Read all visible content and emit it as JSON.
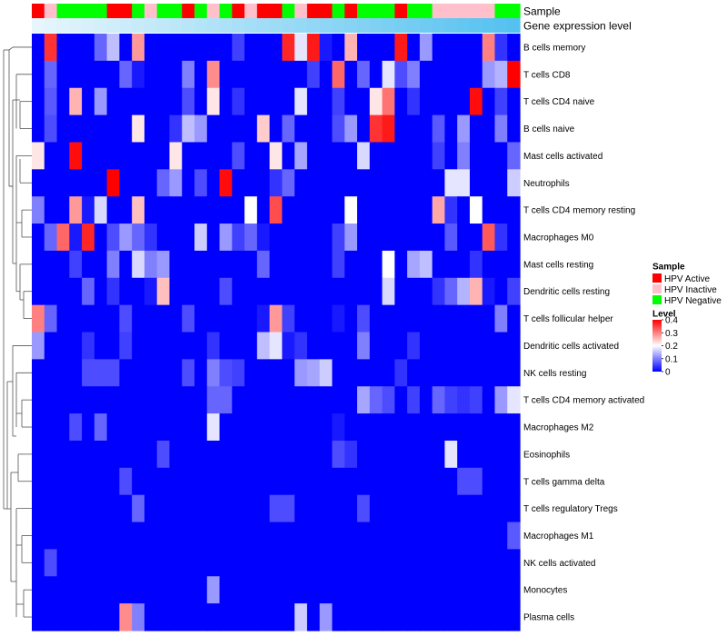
{
  "chart_data": {
    "type": "heatmap",
    "title": "",
    "annotation_rows": [
      {
        "name": "Sample"
      },
      {
        "name": "Gene expression level"
      }
    ],
    "legend_sample": {
      "title": "Sample",
      "entries": [
        {
          "label": "HPV Active",
          "color": "#ff0000"
        },
        {
          "label": "HPV Inactive",
          "color": "#ffc0cb"
        },
        {
          "label": "HPV Negative",
          "color": "#00ff00"
        }
      ]
    },
    "legend_level": {
      "title": "Level",
      "ticks": [
        "0.4",
        "0.3",
        "0.2",
        "0.1",
        "0"
      ],
      "scale": [
        {
          "value": 0.0,
          "color": "#0000ff"
        },
        {
          "value": 0.2,
          "color": "#ffffff"
        },
        {
          "value": 0.4,
          "color": "#ff0000"
        }
      ],
      "range": [
        0,
        0.4
      ]
    },
    "sample_groups": [
      "A",
      "I",
      "N",
      "N",
      "N",
      "N",
      "A",
      "A",
      "N",
      "I",
      "N",
      "N",
      "A",
      "N",
      "I",
      "N",
      "A",
      "I",
      "A",
      "A",
      "N",
      "I",
      "A",
      "A",
      "N",
      "A",
      "N",
      "N",
      "N",
      "A",
      "N",
      "N",
      "I",
      "I",
      "I",
      "I",
      "I",
      "N",
      "N"
    ],
    "expression_gradient": {
      "start": "#e6f6fc",
      "end": "#55c1f0"
    },
    "cell_types": [
      "B cells memory",
      "T cells CD8",
      "T cells CD4 naive",
      "B cells naive",
      "Mast cells activated",
      "Neutrophils",
      "T cells CD4 memory resting",
      "Macrophages M0",
      "Mast cells resting",
      "Dendritic cells resting",
      "T cells follicular helper",
      "Dendritic cells activated",
      "NK cells resting",
      "T cells CD4 memory activated",
      "Macrophages M2",
      "Eosinophils",
      "T cells gamma delta",
      "T cells regulatory  Tregs",
      "Macrophages M1",
      "NK cells activated",
      "Monocytes",
      "Plasma cells"
    ],
    "values": [
      [
        0.0,
        0.36,
        0.0,
        0.0,
        0.0,
        0.08,
        0.15,
        0.0,
        0.28,
        0.0,
        0.0,
        0.0,
        0.0,
        0.0,
        0.0,
        0.0,
        0.05,
        0.0,
        0.0,
        0.0,
        0.37,
        0.18,
        0.38,
        0.02,
        0.0,
        0.26,
        0.0,
        0.0,
        0.0,
        0.38,
        0.0,
        0.12,
        0.0,
        0.0,
        0.0,
        0.0,
        0.3,
        0.04,
        0.0
      ],
      [
        0.0,
        0.08,
        0.0,
        0.0,
        0.0,
        0.0,
        0.0,
        0.08,
        0.02,
        0.0,
        0.0,
        0.0,
        0.1,
        0.0,
        0.29,
        0.0,
        0.0,
        0.0,
        0.0,
        0.0,
        0.0,
        0.0,
        0.05,
        0.0,
        0.32,
        0.0,
        0.08,
        0.0,
        0.18,
        0.06,
        0.1,
        0.0,
        0.0,
        0.0,
        0.0,
        0.0,
        0.12,
        0.14,
        0.4
      ],
      [
        0.0,
        0.07,
        0.0,
        0.26,
        0.0,
        0.12,
        0.0,
        0.0,
        0.0,
        0.0,
        0.0,
        0.0,
        0.06,
        0.0,
        0.22,
        0.0,
        0.04,
        0.0,
        0.0,
        0.0,
        0.0,
        0.18,
        0.0,
        0.0,
        0.05,
        0.0,
        0.0,
        0.22,
        0.31,
        0.0,
        0.04,
        0.0,
        0.0,
        0.0,
        0.0,
        0.39,
        0.0,
        0.05,
        0.0
      ],
      [
        0.0,
        0.06,
        0.0,
        0.0,
        0.0,
        0.0,
        0.0,
        0.0,
        0.22,
        0.0,
        0.0,
        0.04,
        0.15,
        0.12,
        0.0,
        0.0,
        0.0,
        0.0,
        0.24,
        0.0,
        0.08,
        0.0,
        0.0,
        0.0,
        0.06,
        0.12,
        0.0,
        0.36,
        0.38,
        0.0,
        0.0,
        0.0,
        0.07,
        0.0,
        0.12,
        0.0,
        0.0,
        0.1,
        0.0
      ],
      [
        0.22,
        0.0,
        0.0,
        0.39,
        0.0,
        0.0,
        0.0,
        0.0,
        0.0,
        0.0,
        0.0,
        0.22,
        0.0,
        0.0,
        0.0,
        0.0,
        0.06,
        0.0,
        0.0,
        0.22,
        0.0,
        0.13,
        0.0,
        0.0,
        0.0,
        0.0,
        0.17,
        0.0,
        0.0,
        0.0,
        0.0,
        0.0,
        0.05,
        0.0,
        0.1,
        0.0,
        0.0,
        0.0,
        0.08
      ],
      [
        0.0,
        0.0,
        0.0,
        0.0,
        0.0,
        0.0,
        0.4,
        0.0,
        0.0,
        0.0,
        0.08,
        0.12,
        0.0,
        0.06,
        0.0,
        0.39,
        0.0,
        0.0,
        0.0,
        0.04,
        0.08,
        0.0,
        0.0,
        0.0,
        0.0,
        0.0,
        0.0,
        0.0,
        0.0,
        0.0,
        0.0,
        0.0,
        0.0,
        0.18,
        0.18,
        0.0,
        0.0,
        0.0,
        0.16
      ],
      [
        0.1,
        0.0,
        0.0,
        0.28,
        0.02,
        0.17,
        0.0,
        0.0,
        0.25,
        0.0,
        0.0,
        0.0,
        0.0,
        0.0,
        0.0,
        0.0,
        0.0,
        0.2,
        0.0,
        0.34,
        0.0,
        0.0,
        0.0,
        0.0,
        0.0,
        0.2,
        0.0,
        0.0,
        0.0,
        0.0,
        0.0,
        0.0,
        0.27,
        0.04,
        0.0,
        0.2,
        0.0,
        0.0,
        0.0
      ],
      [
        0.0,
        0.08,
        0.32,
        0.02,
        0.37,
        0.0,
        0.06,
        0.12,
        0.08,
        0.04,
        0.0,
        0.0,
        0.0,
        0.16,
        0.0,
        0.12,
        0.05,
        0.08,
        0.02,
        0.0,
        0.0,
        0.0,
        0.0,
        0.0,
        0.05,
        0.12,
        0.0,
        0.0,
        0.0,
        0.0,
        0.0,
        0.0,
        0.0,
        0.07,
        0.0,
        0.0,
        0.33,
        0.04,
        0.0
      ],
      [
        0.0,
        0.0,
        0.0,
        0.05,
        0.0,
        0.0,
        0.1,
        0.0,
        0.17,
        0.1,
        0.12,
        0.0,
        0.0,
        0.0,
        0.0,
        0.0,
        0.0,
        0.0,
        0.08,
        0.0,
        0.0,
        0.0,
        0.0,
        0.0,
        0.05,
        0.0,
        0.0,
        0.0,
        0.2,
        0.0,
        0.13,
        0.15,
        0.0,
        0.0,
        0.0,
        0.04,
        0.0,
        0.0,
        0.0
      ],
      [
        0.0,
        0.0,
        0.0,
        0.0,
        0.08,
        0.0,
        0.04,
        0.0,
        0.0,
        0.02,
        0.25,
        0.0,
        0.0,
        0.0,
        0.0,
        0.06,
        0.0,
        0.0,
        0.0,
        0.0,
        0.0,
        0.0,
        0.0,
        0.0,
        0.0,
        0.0,
        0.0,
        0.0,
        0.17,
        0.0,
        0.0,
        0.0,
        0.04,
        0.08,
        0.14,
        0.26,
        0.02,
        0.0,
        0.05
      ],
      [
        0.3,
        0.08,
        0.0,
        0.0,
        0.0,
        0.0,
        0.0,
        0.06,
        0.0,
        0.0,
        0.0,
        0.0,
        0.06,
        0.0,
        0.0,
        0.0,
        0.0,
        0.0,
        0.02,
        0.28,
        0.05,
        0.0,
        0.0,
        0.0,
        0.02,
        0.0,
        0.06,
        0.0,
        0.0,
        0.0,
        0.0,
        0.0,
        0.0,
        0.0,
        0.0,
        0.0,
        0.0,
        0.1,
        0.0
      ],
      [
        0.12,
        0.0,
        0.0,
        0.0,
        0.04,
        0.0,
        0.0,
        0.05,
        0.0,
        0.0,
        0.0,
        0.0,
        0.0,
        0.0,
        0.04,
        0.0,
        0.0,
        0.0,
        0.15,
        0.18,
        0.02,
        0.04,
        0.0,
        0.0,
        0.0,
        0.0,
        0.1,
        0.0,
        0.0,
        0.0,
        0.04,
        0.0,
        0.0,
        0.0,
        0.0,
        0.0,
        0.0,
        0.0,
        0.0
      ],
      [
        0.0,
        0.0,
        0.0,
        0.0,
        0.06,
        0.06,
        0.06,
        0.0,
        0.0,
        0.0,
        0.0,
        0.0,
        0.06,
        0.0,
        0.1,
        0.06,
        0.05,
        0.0,
        0.0,
        0.0,
        0.0,
        0.12,
        0.13,
        0.16,
        0.0,
        0.0,
        0.0,
        0.0,
        0.0,
        0.04,
        0.0,
        0.0,
        0.0,
        0.0,
        0.0,
        0.0,
        0.0,
        0.0,
        0.0
      ],
      [
        0.0,
        0.0,
        0.0,
        0.0,
        0.0,
        0.0,
        0.0,
        0.0,
        0.0,
        0.0,
        0.0,
        0.0,
        0.0,
        0.0,
        0.08,
        0.08,
        0.0,
        0.0,
        0.0,
        0.0,
        0.0,
        0.0,
        0.0,
        0.0,
        0.0,
        0.0,
        0.13,
        0.08,
        0.06,
        0.0,
        0.05,
        0.0,
        0.08,
        0.05,
        0.04,
        0.05,
        0.0,
        0.12,
        0.18
      ],
      [
        0.0,
        0.0,
        0.0,
        0.06,
        0.0,
        0.08,
        0.0,
        0.0,
        0.0,
        0.0,
        0.0,
        0.0,
        0.0,
        0.0,
        0.18,
        0.0,
        0.0,
        0.0,
        0.0,
        0.0,
        0.0,
        0.0,
        0.0,
        0.0,
        0.02,
        0.0,
        0.0,
        0.0,
        0.0,
        0.0,
        0.0,
        0.0,
        0.0,
        0.0,
        0.0,
        0.0,
        0.0,
        0.0,
        0.0
      ],
      [
        0.0,
        0.0,
        0.0,
        0.0,
        0.0,
        0.0,
        0.0,
        0.0,
        0.0,
        0.0,
        0.06,
        0.0,
        0.0,
        0.0,
        0.0,
        0.0,
        0.0,
        0.0,
        0.0,
        0.0,
        0.0,
        0.0,
        0.0,
        0.0,
        0.06,
        0.04,
        0.0,
        0.0,
        0.0,
        0.0,
        0.0,
        0.0,
        0.0,
        0.18,
        0.0,
        0.0,
        0.0,
        0.0,
        0.0
      ],
      [
        0.0,
        0.0,
        0.0,
        0.0,
        0.0,
        0.0,
        0.0,
        0.06,
        0.0,
        0.0,
        0.0,
        0.0,
        0.0,
        0.0,
        0.0,
        0.0,
        0.0,
        0.0,
        0.0,
        0.0,
        0.0,
        0.0,
        0.0,
        0.0,
        0.0,
        0.0,
        0.0,
        0.0,
        0.0,
        0.0,
        0.0,
        0.0,
        0.0,
        0.0,
        0.06,
        0.06,
        0.0,
        0.0,
        0.0
      ],
      [
        0.0,
        0.0,
        0.0,
        0.0,
        0.0,
        0.0,
        0.0,
        0.0,
        0.08,
        0.0,
        0.0,
        0.0,
        0.0,
        0.0,
        0.0,
        0.0,
        0.0,
        0.0,
        0.0,
        0.06,
        0.06,
        0.0,
        0.0,
        0.0,
        0.0,
        0.0,
        0.06,
        0.0,
        0.0,
        0.0,
        0.0,
        0.0,
        0.0,
        0.0,
        0.0,
        0.0,
        0.0,
        0.0,
        0.0
      ],
      [
        0.0,
        0.0,
        0.0,
        0.0,
        0.0,
        0.0,
        0.0,
        0.0,
        0.0,
        0.0,
        0.0,
        0.0,
        0.0,
        0.0,
        0.0,
        0.0,
        0.0,
        0.0,
        0.0,
        0.0,
        0.0,
        0.0,
        0.0,
        0.0,
        0.0,
        0.0,
        0.0,
        0.0,
        0.0,
        0.0,
        0.0,
        0.0,
        0.0,
        0.0,
        0.0,
        0.0,
        0.0,
        0.0,
        0.07
      ],
      [
        0.0,
        0.06,
        0.0,
        0.0,
        0.0,
        0.0,
        0.0,
        0.0,
        0.0,
        0.0,
        0.0,
        0.0,
        0.0,
        0.0,
        0.0,
        0.0,
        0.0,
        0.0,
        0.0,
        0.0,
        0.0,
        0.0,
        0.0,
        0.0,
        0.0,
        0.0,
        0.0,
        0.0,
        0.0,
        0.0,
        0.0,
        0.0,
        0.0,
        0.0,
        0.0,
        0.0,
        0.0,
        0.0,
        0.0
      ],
      [
        0.0,
        0.0,
        0.0,
        0.0,
        0.0,
        0.0,
        0.0,
        0.0,
        0.0,
        0.0,
        0.0,
        0.0,
        0.0,
        0.0,
        0.12,
        0.0,
        0.0,
        0.0,
        0.0,
        0.0,
        0.0,
        0.0,
        0.0,
        0.0,
        0.0,
        0.0,
        0.0,
        0.0,
        0.0,
        0.0,
        0.0,
        0.0,
        0.0,
        0.0,
        0.0,
        0.0,
        0.0,
        0.0,
        0.0
      ],
      [
        0.0,
        0.0,
        0.0,
        0.0,
        0.0,
        0.0,
        0.0,
        0.29,
        0.1,
        0.0,
        0.0,
        0.0,
        0.0,
        0.0,
        0.0,
        0.0,
        0.0,
        0.0,
        0.0,
        0.0,
        0.0,
        0.16,
        0.0,
        0.12,
        0.0,
        0.0,
        0.0,
        0.0,
        0.0,
        0.0,
        0.0,
        0.0,
        0.0,
        0.0,
        0.0,
        0.0,
        0.0,
        0.0,
        0.0
      ]
    ]
  }
}
